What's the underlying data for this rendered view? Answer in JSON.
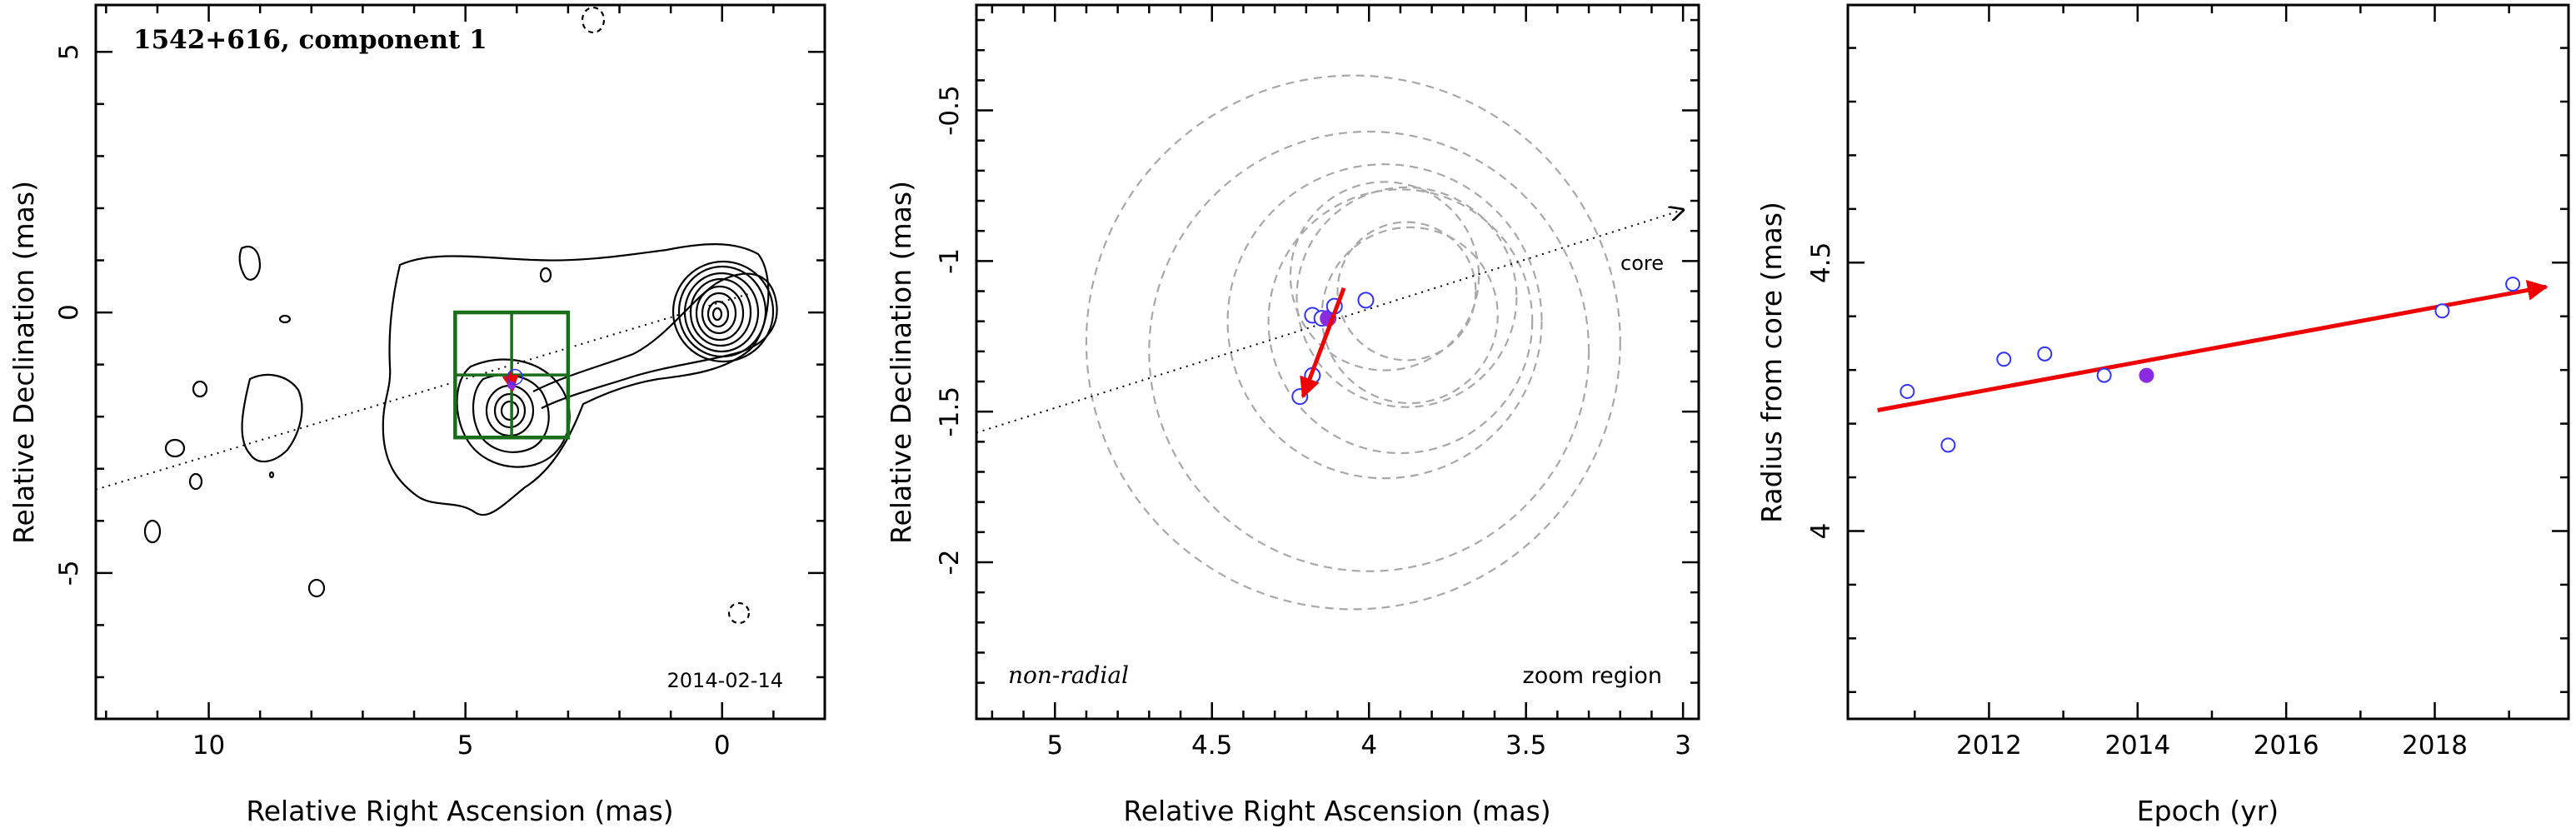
{
  "chart_data": [
    {
      "type": "scatter",
      "panel": "contour-map",
      "title": "1542+616, component 1",
      "date_label": "2014-02-14",
      "xlabel": "Relative Right Ascension (mas)",
      "ylabel": "Relative Declination (mas)",
      "xlim": [
        12.2,
        -2.0
      ],
      "ylim": [
        -7.8,
        5.9
      ],
      "x_ticks": [
        10,
        5,
        0
      ],
      "y_ticks": [
        5,
        0,
        -5
      ],
      "core": {
        "x": 0.0,
        "y": 0.0
      },
      "component": {
        "x": 4.1,
        "y": -1.4
      },
      "zoom_box": {
        "ra_min": 3.0,
        "ra_max": 5.2,
        "dec_min": -2.4,
        "dec_max": 0.0
      },
      "jet_direction_line": {
        "x1": 12.2,
        "y1": -3.4,
        "x2": -0.5,
        "y2": 0.35
      },
      "colors": {
        "box": "#1a6e1a",
        "arrow": "#ee0000",
        "point": "#8a2be2"
      }
    },
    {
      "type": "scatter",
      "panel": "zoom",
      "annotations": [
        "non-radial",
        "zoom region",
        "core"
      ],
      "xlabel": "Relative Right Ascension (mas)",
      "ylabel": "Relative Declination (mas)",
      "xlim": [
        5.25,
        2.95
      ],
      "ylim": [
        -2.52,
        -0.15
      ],
      "x_ticks": [
        5,
        4.5,
        4,
        3.5,
        3
      ],
      "y_ticks": [
        -0.5,
        -1,
        -1.5,
        -2
      ],
      "positions": [
        {
          "ra": 4.22,
          "dec": -1.45,
          "fill": false
        },
        {
          "ra": 4.18,
          "dec": -1.38,
          "fill": false
        },
        {
          "ra": 4.18,
          "dec": -1.18,
          "fill": false
        },
        {
          "ra": 4.15,
          "dec": -1.19,
          "fill": false
        },
        {
          "ra": 4.13,
          "dec": -1.19,
          "fill": true
        },
        {
          "ra": 4.11,
          "dec": -1.15,
          "fill": false
        },
        {
          "ra": 4.01,
          "dec": -1.13,
          "fill": false
        }
      ],
      "component_sizes": [
        {
          "ra": 4.05,
          "dec": -1.27,
          "r": 0.85
        },
        {
          "ra": 4.0,
          "dec": -1.3,
          "r": 0.7
        },
        {
          "ra": 3.95,
          "dec": -1.2,
          "r": 0.5
        },
        {
          "ra": 3.9,
          "dec": -1.2,
          "r": 0.42
        },
        {
          "ra": 3.88,
          "dec": -1.12,
          "r": 0.35
        },
        {
          "ra": 3.87,
          "dec": -1.18,
          "r": 0.28
        },
        {
          "ra": 3.95,
          "dec": -1.05,
          "r": 0.3
        },
        {
          "ra": 3.88,
          "dec": -1.1,
          "r": 0.22
        }
      ],
      "motion_arrow": {
        "ra1": 4.08,
        "dec1": -1.09,
        "ra2": 4.21,
        "dec2": -1.45
      },
      "jet_direction_line": {
        "x1": 5.25,
        "y1": -1.57,
        "x2": 3.0,
        "y2": -0.83
      }
    },
    {
      "type": "scatter",
      "panel": "radius-vs-epoch",
      "xlabel": "Epoch (yr)",
      "ylabel": "Radius from core (mas)",
      "xlim": [
        2010.1,
        2019.8
      ],
      "ylim": [
        3.65,
        4.98
      ],
      "x_ticks": [
        2012,
        2014,
        2016,
        2018
      ],
      "y_ticks": [
        4,
        4.5
      ],
      "points": [
        {
          "x": 2010.9,
          "y": 4.26,
          "fill": false
        },
        {
          "x": 2011.45,
          "y": 4.16,
          "fill": false
        },
        {
          "x": 2012.2,
          "y": 4.32,
          "fill": false
        },
        {
          "x": 2012.75,
          "y": 4.33,
          "fill": false
        },
        {
          "x": 2013.55,
          "y": 4.29,
          "fill": false
        },
        {
          "x": 2014.12,
          "y": 4.29,
          "fill": true
        },
        {
          "x": 2018.1,
          "y": 4.41,
          "fill": false
        },
        {
          "x": 2019.05,
          "y": 4.46,
          "fill": false
        }
      ],
      "fit_line": {
        "x1": 2010.5,
        "y1": 4.225,
        "x2": 2019.5,
        "y2": 4.455
      }
    }
  ]
}
